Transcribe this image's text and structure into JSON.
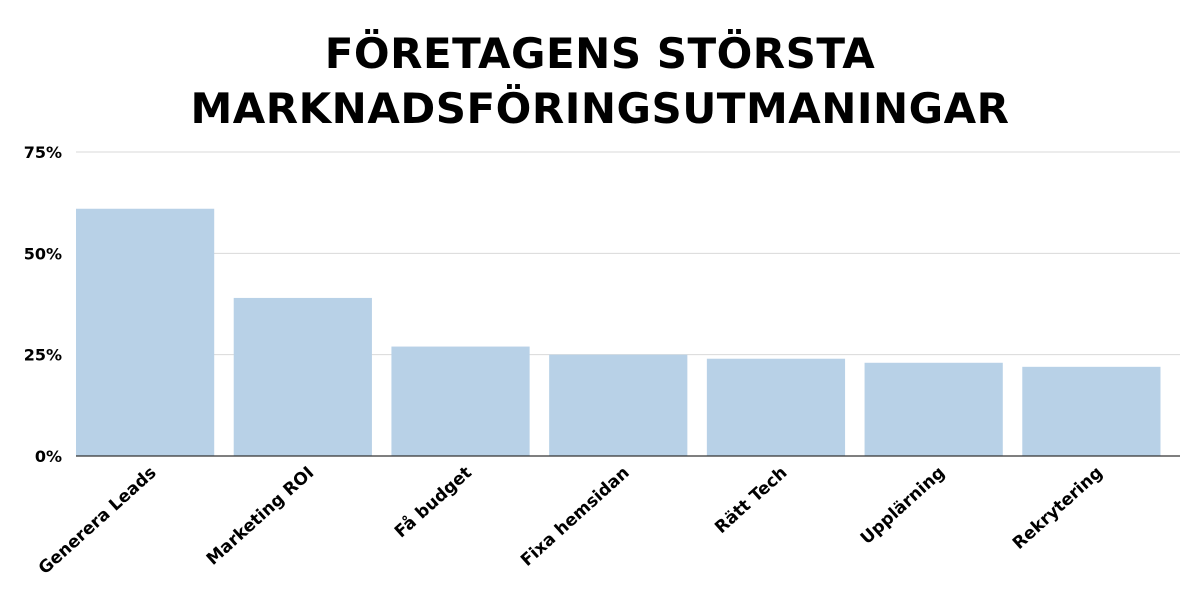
{
  "chart_data": {
    "type": "bar",
    "title_lines": [
      "FÖRETAGENS STÖRSTA",
      "MARKNADSFÖRINGSUTMANINGAR"
    ],
    "xlabel": "",
    "ylabel": "",
    "categories": [
      "Generera Leads",
      "Marketing ROI",
      "Få budget",
      "Fixa hemsidan",
      "Rätt Tech",
      "Upplärning",
      "Rekrytering"
    ],
    "values": [
      61,
      39,
      27,
      25,
      24,
      23,
      22
    ],
    "ylim": [
      0,
      75
    ],
    "y_ticks": [
      0,
      25,
      50,
      75
    ],
    "y_tick_labels": [
      "0%",
      "25%",
      "50%",
      "75%"
    ],
    "grid": true,
    "legend": "none",
    "bar_color": "#b8d1e7",
    "grid_color": "#d9d9d9",
    "axis_color": "#333333"
  }
}
